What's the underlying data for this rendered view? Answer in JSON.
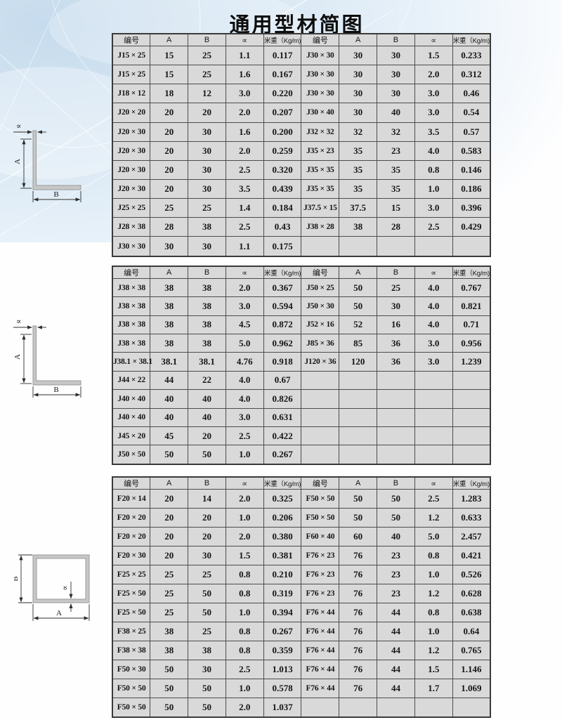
{
  "page": {
    "title": "通用型材简图"
  },
  "colors": {
    "cell_bg": "#d9d9d9",
    "table_border": "#4c4c4c",
    "background_blue": "#c6dbed",
    "profile_gray": "#c7c7c7"
  },
  "diagrams": [
    {
      "type": "angle-profile",
      "a_label": "A",
      "b_label": "B",
      "alpha_label": "∝"
    },
    {
      "type": "angle-profile",
      "a_label": "A",
      "b_label": "B",
      "alpha_label": "∝"
    },
    {
      "type": "rect-tube-profile",
      "a_label": "A",
      "b_label": "B",
      "alpha_label": "∝"
    }
  ],
  "tables": [
    {
      "name": "angle-profiles-table-1",
      "headers": [
        "编号",
        "A",
        "B",
        "∝",
        "米重（Kg/m)",
        "编号",
        "A",
        "B",
        "∝",
        "米重（Kg/m)"
      ],
      "rows": [
        [
          "J15 × 25",
          "15",
          "25",
          "1.1",
          "0.117",
          "J30 × 30",
          "30",
          "30",
          "1.5",
          "0.233"
        ],
        [
          "J15 × 25",
          "15",
          "25",
          "1.6",
          "0.167",
          "J30 × 30",
          "30",
          "30",
          "2.0",
          "0.312"
        ],
        [
          "J18 × 12",
          "18",
          "12",
          "3.0",
          "0.220",
          "J30 × 30",
          "30",
          "30",
          "3.0",
          "0.46"
        ],
        [
          "J20 × 20",
          "20",
          "20",
          "2.0",
          "0.207",
          "J30 × 40",
          "30",
          "40",
          "3.0",
          "0.54"
        ],
        [
          "J20 × 30",
          "20",
          "30",
          "1.6",
          "0.200",
          "J32 × 32",
          "32",
          "32",
          "3.5",
          "0.57"
        ],
        [
          "J20 × 30",
          "20",
          "30",
          "2.0",
          "0.259",
          "J35 × 23",
          "35",
          "23",
          "4.0",
          "0.583"
        ],
        [
          "J20 × 30",
          "20",
          "30",
          "2.5",
          "0.320",
          "J35 × 35",
          "35",
          "35",
          "0.8",
          "0.146"
        ],
        [
          "J20 × 30",
          "20",
          "30",
          "3.5",
          "0.439",
          "J35 × 35",
          "35",
          "35",
          "1.0",
          "0.186"
        ],
        [
          "J25 × 25",
          "25",
          "25",
          "1.4",
          "0.184",
          "J37.5 × 15",
          "37.5",
          "15",
          "3.0",
          "0.396"
        ],
        [
          "J28 × 38",
          "28",
          "38",
          "2.5",
          "0.43",
          "J38 × 28",
          "38",
          "28",
          "2.5",
          "0.429"
        ],
        [
          "J30 × 30",
          "30",
          "30",
          "1.1",
          "0.175",
          "",
          "",
          "",
          "",
          ""
        ]
      ]
    },
    {
      "name": "angle-profiles-table-2",
      "headers": [
        "编号",
        "A",
        "B",
        "∝",
        "米重（Kg/m)",
        "编号",
        "A",
        "B",
        "∝",
        "米重（Kg/m)"
      ],
      "rows": [
        [
          "J38 × 38",
          "38",
          "38",
          "2.0",
          "0.367",
          "J50 × 25",
          "50",
          "25",
          "4.0",
          "0.767"
        ],
        [
          "J38 × 38",
          "38",
          "38",
          "3.0",
          "0.594",
          "J50 × 30",
          "50",
          "30",
          "4.0",
          "0.821"
        ],
        [
          "J38 × 38",
          "38",
          "38",
          "4.5",
          "0.872",
          "J52 × 16",
          "52",
          "16",
          "4.0",
          "0.71"
        ],
        [
          "J38 × 38",
          "38",
          "38",
          "5.0",
          "0.962",
          "J85 × 36",
          "85",
          "36",
          "3.0",
          "0.956"
        ],
        [
          "J38.1 × 38.1",
          "38.1",
          "38.1",
          "4.76",
          "0.918",
          "J120 × 36",
          "120",
          "36",
          "3.0",
          "1.239"
        ],
        [
          "J44 × 22",
          "44",
          "22",
          "4.0",
          "0.67",
          "",
          "",
          "",
          "",
          ""
        ],
        [
          "J40 × 40",
          "40",
          "40",
          "4.0",
          "0.826",
          "",
          "",
          "",
          "",
          ""
        ],
        [
          "J40 × 40",
          "40",
          "40",
          "3.0",
          "0.631",
          "",
          "",
          "",
          "",
          ""
        ],
        [
          "J45 × 20",
          "45",
          "20",
          "2.5",
          "0.422",
          "",
          "",
          "",
          "",
          ""
        ],
        [
          "J50 × 50",
          "50",
          "50",
          "1.0",
          "0.267",
          "",
          "",
          "",
          "",
          ""
        ]
      ]
    },
    {
      "name": "rect-tube-profiles-table",
      "headers": [
        "编号",
        "A",
        "B",
        "∝",
        "米重（Kg/m)",
        "编号",
        "A",
        "B",
        "∝",
        "米重（Kg/m)"
      ],
      "rows": [
        [
          "F20 × 14",
          "20",
          "14",
          "2.0",
          "0.325",
          "F50 × 50",
          "50",
          "50",
          "2.5",
          "1.283"
        ],
        [
          "F20 × 20",
          "20",
          "20",
          "1.0",
          "0.206",
          "F50 × 50",
          "50",
          "50",
          "1.2",
          "0.633"
        ],
        [
          "F20 × 20",
          "20",
          "20",
          "2.0",
          "0.380",
          "F60 × 40",
          "60",
          "40",
          "5.0",
          "2.457"
        ],
        [
          "F20 × 30",
          "20",
          "30",
          "1.5",
          "0.381",
          "F76 × 23",
          "76",
          "23",
          "0.8",
          "0.421"
        ],
        [
          "F25 × 25",
          "25",
          "25",
          "0.8",
          "0.210",
          "F76 × 23",
          "76",
          "23",
          "1.0",
          "0.526"
        ],
        [
          "F25 × 50",
          "25",
          "50",
          "0.8",
          "0.319",
          "F76 × 23",
          "76",
          "23",
          "1.2",
          "0.628"
        ],
        [
          "F25 × 50",
          "25",
          "50",
          "1.0",
          "0.394",
          "F76 × 44",
          "76",
          "44",
          "0.8",
          "0.638"
        ],
        [
          "F38 × 25",
          "38",
          "25",
          "0.8",
          "0.267",
          "F76 × 44",
          "76",
          "44",
          "1.0",
          "0.64"
        ],
        [
          "F38 × 38",
          "38",
          "38",
          "0.8",
          "0.359",
          "F76 × 44",
          "76",
          "44",
          "1.2",
          "0.765"
        ],
        [
          "F50 × 30",
          "50",
          "30",
          "2.5",
          "1.013",
          "F76 × 44",
          "76",
          "44",
          "1.5",
          "1.146"
        ],
        [
          "F50 × 50",
          "50",
          "50",
          "1.0",
          "0.578",
          "F76 × 44",
          "76",
          "44",
          "1.7",
          "1.069"
        ],
        [
          "F50 × 50",
          "50",
          "50",
          "2.0",
          "1.037",
          "",
          "",
          "",
          "",
          ""
        ]
      ]
    }
  ]
}
